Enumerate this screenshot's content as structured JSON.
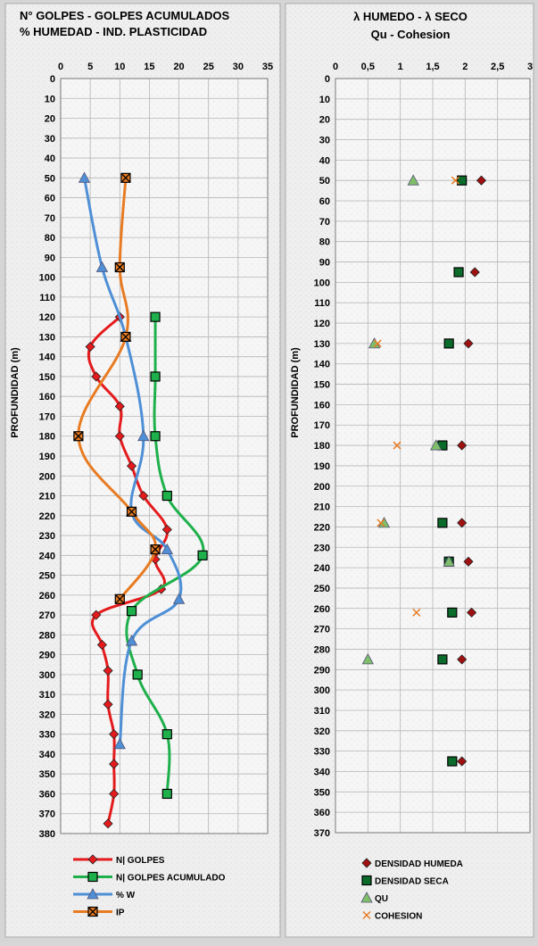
{
  "chart_data": [
    {
      "type": "line",
      "title_lines": [
        "N° GOLPES  -  GOLPES ACUMULADOS",
        "% HUMEDAD    -  IND. PLASTICIDAD"
      ],
      "xlabel": "",
      "ylabel": "PROFUNDIDAD (m)",
      "xlim": [
        0,
        35
      ],
      "ylim": [
        0,
        380
      ],
      "y_inverted": true,
      "x_ticks": [
        "0",
        "5",
        "10",
        "15",
        "20",
        "25",
        "30",
        "35"
      ],
      "y_ticks": [
        "0",
        "10",
        "20",
        "30",
        "40",
        "50",
        "60",
        "70",
        "80",
        "90",
        "100",
        "110",
        "120",
        "130",
        "140",
        "150",
        "160",
        "170",
        "180",
        "190",
        "200",
        "210",
        "220",
        "230",
        "240",
        "250",
        "260",
        "270",
        "280",
        "290",
        "300",
        "310",
        "320",
        "330",
        "340",
        "350",
        "360",
        "370",
        "380"
      ],
      "grid": true,
      "legend_position": "bottom",
      "series": [
        {
          "name": "N| GOLPES",
          "color": "#e41a1c",
          "marker": "diamond",
          "points": [
            [
              10,
              120
            ],
            [
              5,
              135
            ],
            [
              6,
              150
            ],
            [
              10,
              165
            ],
            [
              10,
              180
            ],
            [
              12,
              195
            ],
            [
              14,
              210
            ],
            [
              18,
              227
            ],
            [
              16,
              242
            ],
            [
              17,
              257
            ],
            [
              6,
              270
            ],
            [
              7,
              285
            ],
            [
              8,
              298
            ],
            [
              8,
              315
            ],
            [
              9,
              330
            ],
            [
              9,
              345
            ],
            [
              9,
              360
            ],
            [
              8,
              375
            ]
          ]
        },
        {
          "name": "N| GOLPES ACUMULADO",
          "color": "#1eb04b",
          "marker": "square",
          "points": [
            [
              16,
              120
            ],
            [
              16,
              150
            ],
            [
              16,
              180
            ],
            [
              18,
              210
            ],
            [
              24,
              240
            ],
            [
              12,
              268
            ],
            [
              13,
              300
            ],
            [
              18,
              330
            ],
            [
              18,
              360
            ]
          ]
        },
        {
          "name": "% W",
          "color": "#4e8fd6",
          "marker": "triangle",
          "points": [
            [
              4,
              50
            ],
            [
              7,
              95
            ],
            [
              11,
              130
            ],
            [
              14,
              180
            ],
            [
              12,
              218
            ],
            [
              18,
              237
            ],
            [
              20,
              262
            ],
            [
              12,
              283
            ],
            [
              10,
              335
            ]
          ]
        },
        {
          "name": "IP",
          "color": "#e87b22",
          "marker": "square-x",
          "points": [
            [
              11,
              50
            ],
            [
              10,
              95
            ],
            [
              11,
              130
            ],
            [
              3,
              180
            ],
            [
              12,
              218
            ],
            [
              16,
              237
            ],
            [
              10,
              262
            ]
          ]
        }
      ]
    },
    {
      "type": "scatter",
      "title_lines": [
        "λ HUMEDO  -  λ SECO",
        "Qu     -     Cohesion"
      ],
      "xlabel": "",
      "ylabel": "PROFUNDIDAD (m)",
      "xlim": [
        0,
        3
      ],
      "ylim": [
        0,
        370
      ],
      "y_inverted": true,
      "x_ticks": [
        "0",
        "0,5",
        "1",
        "1,5",
        "2",
        "2,5",
        "3"
      ],
      "y_ticks": [
        "0",
        "10",
        "20",
        "30",
        "40",
        "50",
        "60",
        "70",
        "80",
        "90",
        "100",
        "110",
        "120",
        "130",
        "140",
        "150",
        "160",
        "170",
        "180",
        "190",
        "200",
        "210",
        "220",
        "230",
        "240",
        "250",
        "260",
        "270",
        "280",
        "290",
        "300",
        "310",
        "320",
        "330",
        "340",
        "350",
        "360",
        "370"
      ],
      "grid": true,
      "legend_position": "bottom",
      "series": [
        {
          "name": "DENSIDAD HUMEDA",
          "color": "#a01010",
          "marker": "diamond",
          "points": [
            [
              2.25,
              50
            ],
            [
              2.15,
              95
            ],
            [
              2.05,
              130
            ],
            [
              1.95,
              180
            ],
            [
              1.95,
              218
            ],
            [
              2.05,
              237
            ],
            [
              2.1,
              262
            ],
            [
              1.95,
              285
            ],
            [
              1.95,
              335
            ]
          ]
        },
        {
          "name": "DENSIDAD SECA",
          "color": "#0b6b2a",
          "marker": "square",
          "points": [
            [
              1.95,
              50
            ],
            [
              1.9,
              95
            ],
            [
              1.75,
              130
            ],
            [
              1.65,
              180
            ],
            [
              1.65,
              218
            ],
            [
              1.75,
              237
            ],
            [
              1.8,
              262
            ],
            [
              1.65,
              285
            ],
            [
              1.8,
              335
            ]
          ]
        },
        {
          "name": "QU",
          "color": "#7fbf6a",
          "marker": "triangle",
          "points": [
            [
              1.2,
              50
            ],
            [
              0.6,
              130
            ],
            [
              1.55,
              180
            ],
            [
              0.75,
              218
            ],
            [
              1.75,
              237
            ],
            [
              0.5,
              285
            ]
          ]
        },
        {
          "name": "COHESION",
          "color": "#e87b22",
          "marker": "x",
          "points": [
            [
              1.85,
              50
            ],
            [
              0.65,
              130
            ],
            [
              0.95,
              180
            ],
            [
              0.7,
              218
            ],
            [
              1.25,
              262
            ]
          ]
        }
      ]
    }
  ]
}
